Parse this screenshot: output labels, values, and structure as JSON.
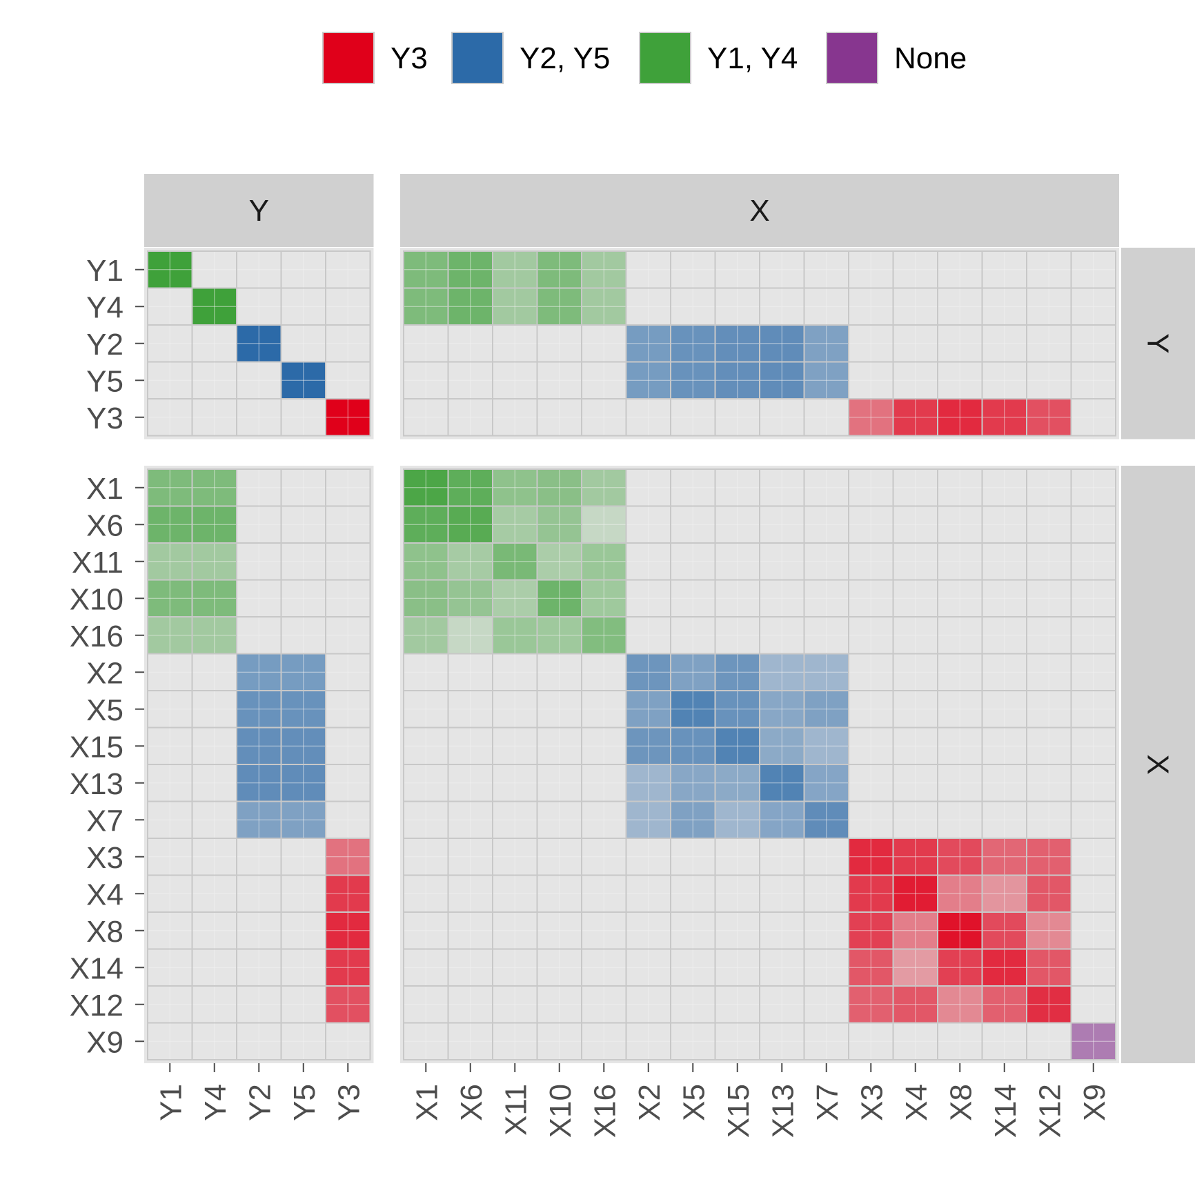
{
  "chart_data": {
    "type": "heatmap",
    "title": "",
    "xlabel": "",
    "ylabel": "",
    "grid": true,
    "legend_position": "top",
    "legend": [
      {
        "label": "Y3",
        "color": "#E0001A"
      },
      {
        "label": "Y2, Y5",
        "color": "#2C6AA8"
      },
      {
        "label": "Y1, Y4",
        "color": "#3FA13A"
      },
      {
        "label": "None",
        "color": "#87368F"
      }
    ],
    "facet_columns": [
      {
        "label": "Y",
        "categories": [
          "Y1",
          "Y4",
          "Y2",
          "Y5",
          "Y3"
        ]
      },
      {
        "label": "X",
        "categories": [
          "X1",
          "X6",
          "X11",
          "X10",
          "X16",
          "X2",
          "X5",
          "X15",
          "X13",
          "X7",
          "X3",
          "X4",
          "X8",
          "X14",
          "X12",
          "X9"
        ]
      }
    ],
    "facet_rows": [
      {
        "label": "Y",
        "categories": [
          "Y1",
          "Y4",
          "Y2",
          "Y5",
          "Y3"
        ]
      },
      {
        "label": "X",
        "categories": [
          "X1",
          "X6",
          "X11",
          "X10",
          "X16",
          "X2",
          "X5",
          "X15",
          "X13",
          "X7",
          "X3",
          "X4",
          "X8",
          "X14",
          "X12",
          "X9"
        ]
      }
    ],
    "value_range": [
      0,
      1
    ],
    "panels": [
      {
        "row": "Y",
        "col": "Y",
        "groups": [
          [
            "G",
            "G",
            "",
            "",
            ""
          ],
          [
            "G",
            "G",
            "",
            "",
            ""
          ],
          [
            "",
            "",
            "B",
            "B",
            ""
          ],
          [
            "",
            "",
            "B",
            "B",
            ""
          ],
          [
            "",
            "",
            "",
            "",
            "R"
          ]
        ],
        "values": [
          [
            1.0,
            0,
            0,
            0,
            0
          ],
          [
            0,
            1.0,
            0,
            0,
            0
          ],
          [
            0,
            0,
            1.0,
            0,
            0
          ],
          [
            0,
            0,
            0,
            1.0,
            0
          ],
          [
            0,
            0,
            0,
            0,
            1.0
          ]
        ]
      },
      {
        "row": "Y",
        "col": "X",
        "groups": [
          [
            "G",
            "G",
            "G",
            "G",
            "G",
            "",
            "",
            "",
            "",
            "",
            "",
            "",
            "",
            "",
            "",
            ""
          ],
          [
            "G",
            "G",
            "G",
            "G",
            "G",
            "",
            "",
            "",
            "",
            "",
            "",
            "",
            "",
            "",
            "",
            ""
          ],
          [
            "",
            "",
            "",
            "",
            "",
            "B",
            "B",
            "B",
            "B",
            "B",
            "",
            "",
            "",
            "",
            "",
            ""
          ],
          [
            "",
            "",
            "",
            "",
            "",
            "B",
            "B",
            "B",
            "B",
            "B",
            "",
            "",
            "",
            "",
            "",
            ""
          ],
          [
            "",
            "",
            "",
            "",
            "",
            "",
            "",
            "",
            "",
            "",
            "R",
            "R",
            "R",
            "R",
            "R",
            ""
          ]
        ],
        "values": [
          [
            0.62,
            0.72,
            0.4,
            0.62,
            0.4,
            0,
            0,
            0,
            0,
            0,
            0,
            0,
            0,
            0,
            0,
            0
          ],
          [
            0.62,
            0.72,
            0.4,
            0.62,
            0.4,
            0,
            0,
            0,
            0,
            0,
            0,
            0,
            0,
            0,
            0,
            0
          ],
          [
            0,
            0,
            0,
            0,
            0,
            0.6,
            0.68,
            0.7,
            0.72,
            0.55,
            0,
            0,
            0,
            0,
            0,
            0
          ],
          [
            0,
            0,
            0,
            0,
            0,
            0.6,
            0.68,
            0.7,
            0.72,
            0.55,
            0,
            0,
            0,
            0,
            0,
            0
          ],
          [
            0,
            0,
            0,
            0,
            0,
            0,
            0,
            0,
            0,
            0,
            0.5,
            0.75,
            0.82,
            0.75,
            0.65,
            0
          ]
        ]
      },
      {
        "row": "X",
        "col": "Y",
        "groups": [
          [
            "G",
            "G",
            "",
            "",
            ""
          ],
          [
            "G",
            "G",
            "",
            "",
            ""
          ],
          [
            "G",
            "G",
            "",
            "",
            ""
          ],
          [
            "G",
            "G",
            "",
            "",
            ""
          ],
          [
            "G",
            "G",
            "",
            "",
            ""
          ],
          [
            "",
            "",
            "B",
            "B",
            ""
          ],
          [
            "",
            "",
            "B",
            "B",
            ""
          ],
          [
            "",
            "",
            "B",
            "B",
            ""
          ],
          [
            "",
            "",
            "B",
            "B",
            ""
          ],
          [
            "",
            "",
            "B",
            "B",
            ""
          ],
          [
            "",
            "",
            "",
            "",
            "R"
          ],
          [
            "",
            "",
            "",
            "",
            "R"
          ],
          [
            "",
            "",
            "",
            "",
            "R"
          ],
          [
            "",
            "",
            "",
            "",
            "R"
          ],
          [
            "",
            "",
            "",
            "",
            "R"
          ],
          [
            "",
            "",
            "",
            "",
            ""
          ]
        ],
        "values": [
          [
            0.62,
            0.62,
            0,
            0,
            0
          ],
          [
            0.72,
            0.72,
            0,
            0,
            0
          ],
          [
            0.4,
            0.4,
            0,
            0,
            0
          ],
          [
            0.62,
            0.62,
            0,
            0,
            0
          ],
          [
            0.4,
            0.4,
            0,
            0,
            0
          ],
          [
            0,
            0,
            0.6,
            0.6,
            0
          ],
          [
            0,
            0,
            0.68,
            0.68,
            0
          ],
          [
            0,
            0,
            0.7,
            0.7,
            0
          ],
          [
            0,
            0,
            0.72,
            0.72,
            0
          ],
          [
            0,
            0,
            0.55,
            0.55,
            0
          ],
          [
            0,
            0,
            0,
            0,
            0.5
          ],
          [
            0,
            0,
            0,
            0,
            0.75
          ],
          [
            0,
            0,
            0,
            0,
            0.82
          ],
          [
            0,
            0,
            0,
            0,
            0.75
          ],
          [
            0,
            0,
            0,
            0,
            0.65
          ],
          [
            0,
            0,
            0,
            0,
            0
          ]
        ]
      },
      {
        "row": "X",
        "col": "X",
        "groups": [
          [
            "G",
            "G",
            "G",
            "G",
            "G",
            "",
            "",
            "",
            "",
            "",
            "",
            "",
            "",
            "",
            "",
            ""
          ],
          [
            "G",
            "G",
            "G",
            "G",
            "G",
            "",
            "",
            "",
            "",
            "",
            "",
            "",
            "",
            "",
            "",
            ""
          ],
          [
            "G",
            "G",
            "G",
            "G",
            "G",
            "",
            "",
            "",
            "",
            "",
            "",
            "",
            "",
            "",
            "",
            ""
          ],
          [
            "G",
            "G",
            "G",
            "G",
            "G",
            "",
            "",
            "",
            "",
            "",
            "",
            "",
            "",
            "",
            "",
            ""
          ],
          [
            "G",
            "G",
            "G",
            "G",
            "G",
            "",
            "",
            "",
            "",
            "",
            "",
            "",
            "",
            "",
            "",
            ""
          ],
          [
            "",
            "",
            "",
            "",
            "",
            "B",
            "B",
            "B",
            "B",
            "B",
            "",
            "",
            "",
            "",
            "",
            ""
          ],
          [
            "",
            "",
            "",
            "",
            "",
            "B",
            "B",
            "B",
            "B",
            "B",
            "",
            "",
            "",
            "",
            "",
            ""
          ],
          [
            "",
            "",
            "",
            "",
            "",
            "B",
            "B",
            "B",
            "B",
            "B",
            "",
            "",
            "",
            "",
            "",
            ""
          ],
          [
            "",
            "",
            "",
            "",
            "",
            "B",
            "B",
            "B",
            "B",
            "B",
            "",
            "",
            "",
            "",
            "",
            ""
          ],
          [
            "",
            "",
            "",
            "",
            "",
            "B",
            "B",
            "B",
            "B",
            "B",
            "",
            "",
            "",
            "",
            "",
            ""
          ],
          [
            "",
            "",
            "",
            "",
            "",
            "",
            "",
            "",
            "",
            "",
            "R",
            "R",
            "R",
            "R",
            "R",
            ""
          ],
          [
            "",
            "",
            "",
            "",
            "",
            "",
            "",
            "",
            "",
            "",
            "R",
            "R",
            "R",
            "R",
            "R",
            ""
          ],
          [
            "",
            "",
            "",
            "",
            "",
            "",
            "",
            "",
            "",
            "",
            "R",
            "R",
            "R",
            "R",
            "R",
            ""
          ],
          [
            "",
            "",
            "",
            "",
            "",
            "",
            "",
            "",
            "",
            "",
            "R",
            "R",
            "R",
            "R",
            "R",
            ""
          ],
          [
            "",
            "",
            "",
            "",
            "",
            "",
            "",
            "",
            "",
            "",
            "R",
            "R",
            "R",
            "R",
            "R",
            ""
          ],
          [
            "",
            "",
            "",
            "",
            "",
            "",
            "",
            "",
            "",
            "",
            "",
            "",
            "",
            "",
            "",
            "P"
          ]
        ],
        "values": [
          [
            0.92,
            0.82,
            0.52,
            0.55,
            0.4,
            0,
            0,
            0,
            0,
            0,
            0,
            0,
            0,
            0,
            0,
            0
          ],
          [
            0.82,
            0.85,
            0.38,
            0.48,
            0.18,
            0,
            0,
            0,
            0,
            0,
            0,
            0,
            0,
            0,
            0,
            0
          ],
          [
            0.52,
            0.38,
            0.65,
            0.35,
            0.45,
            0,
            0,
            0,
            0,
            0,
            0,
            0,
            0,
            0,
            0,
            0
          ],
          [
            0.55,
            0.48,
            0.35,
            0.72,
            0.42,
            0,
            0,
            0,
            0,
            0,
            0,
            0,
            0,
            0,
            0,
            0
          ],
          [
            0.4,
            0.18,
            0.45,
            0.42,
            0.6,
            0,
            0,
            0,
            0,
            0,
            0,
            0,
            0,
            0,
            0,
            0
          ],
          [
            0,
            0,
            0,
            0,
            0,
            0.65,
            0.55,
            0.65,
            0.38,
            0.38,
            0,
            0,
            0,
            0,
            0,
            0
          ],
          [
            0,
            0,
            0,
            0,
            0,
            0.55,
            0.8,
            0.68,
            0.5,
            0.55,
            0,
            0,
            0,
            0,
            0,
            0
          ],
          [
            0,
            0,
            0,
            0,
            0,
            0.65,
            0.68,
            0.8,
            0.48,
            0.38,
            0,
            0,
            0,
            0,
            0,
            0
          ],
          [
            0,
            0,
            0,
            0,
            0,
            0.38,
            0.5,
            0.48,
            0.8,
            0.52,
            0,
            0,
            0,
            0,
            0,
            0
          ],
          [
            0,
            0,
            0,
            0,
            0,
            0.38,
            0.55,
            0.38,
            0.52,
            0.72,
            0,
            0,
            0,
            0,
            0,
            0
          ],
          [
            0,
            0,
            0,
            0,
            0,
            0,
            0,
            0,
            0,
            0,
            0.82,
            0.75,
            0.68,
            0.55,
            0.58,
            0
          ],
          [
            0,
            0,
            0,
            0,
            0,
            0,
            0,
            0,
            0,
            0,
            0.75,
            0.88,
            0.45,
            0.35,
            0.62,
            0
          ],
          [
            0,
            0,
            0,
            0,
            0,
            0,
            0,
            0,
            0,
            0,
            0.72,
            0.45,
            0.92,
            0.68,
            0.4,
            0
          ],
          [
            0,
            0,
            0,
            0,
            0,
            0,
            0,
            0,
            0,
            0,
            0.62,
            0.32,
            0.72,
            0.82,
            0.62,
            0
          ],
          [
            0,
            0,
            0,
            0,
            0,
            0,
            0,
            0,
            0,
            0,
            0.58,
            0.62,
            0.4,
            0.58,
            0.8,
            0
          ],
          [
            0,
            0,
            0,
            0,
            0,
            0,
            0,
            0,
            0,
            0,
            0,
            0,
            0,
            0,
            0,
            0.6
          ]
        ]
      }
    ]
  }
}
